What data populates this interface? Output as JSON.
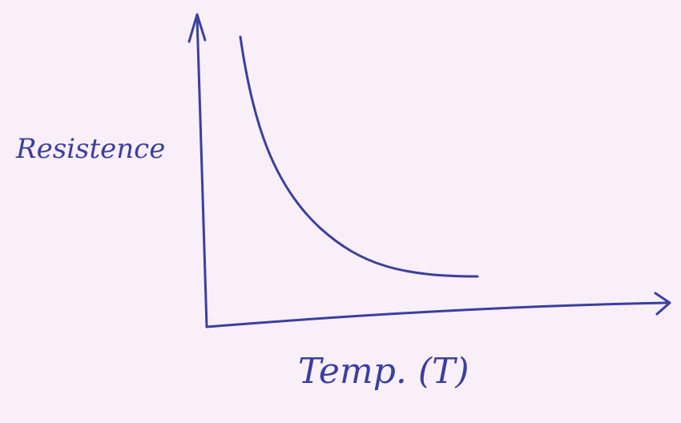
{
  "labels": {
    "y_axis": "Resistence",
    "x_axis": "Temp. (T)"
  }
}
